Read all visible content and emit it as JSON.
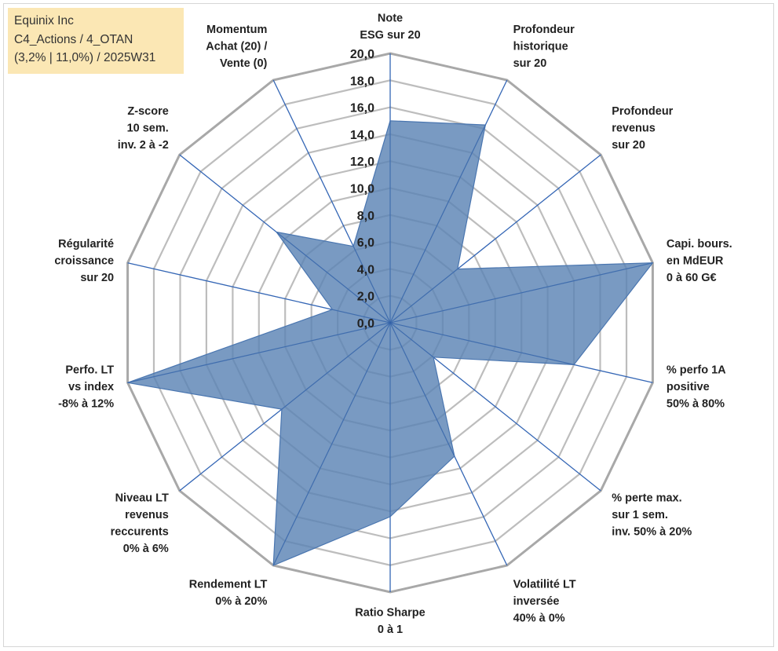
{
  "info": {
    "line1": "Equinix Inc",
    "line2": "C4_Actions / 4_OTAN",
    "line3": "(3,2% | 11,0%) / 2025W31"
  },
  "chart_data": {
    "type": "radar",
    "range": [
      0,
      20
    ],
    "step": 2,
    "grid": true,
    "tick_labels": [
      "0,0",
      "2,0",
      "4,0",
      "6,0",
      "8,0",
      "10,0",
      "12,0",
      "14,0",
      "16,0",
      "18,0",
      "20,0"
    ],
    "axes": [
      {
        "label": [
          "Note",
          "ESG sur 20"
        ],
        "value": 15.0
      },
      {
        "label": [
          "Profondeur",
          "historique",
          "sur 20"
        ],
        "value": 16.3
      },
      {
        "label": [
          "Profondeur",
          "revenus",
          "sur 20"
        ],
        "value": 6.4
      },
      {
        "label": [
          "Capi. bours.",
          "en MdEUR",
          "0 à 60 G€"
        ],
        "value": 20.0
      },
      {
        "label": [
          "% perfo 1A",
          "positive",
          "50% à 80%"
        ],
        "value": 14.0
      },
      {
        "label": [
          "% perte max.",
          "sur 1 sem.",
          "inv. 50% à 20%"
        ],
        "value": 4.1
      },
      {
        "label": [
          "Volatilité LT",
          "inversée",
          "40% à 0%"
        ],
        "value": 11.0
      },
      {
        "label": [
          "Ratio Sharpe",
          "0 à 1"
        ],
        "value": 14.4
      },
      {
        "label": [
          "Rendement LT",
          "0% à 20%"
        ],
        "value": 20.0
      },
      {
        "label": [
          "Niveau LT",
          "revenus",
          "reccurents",
          "0% à 6%"
        ],
        "value": 10.3
      },
      {
        "label": [
          "Perfo. LT",
          "vs index",
          "-8% à 12%"
        ],
        "value": 20.0
      },
      {
        "label": [
          "Régularité",
          "croissance",
          "sur 20"
        ],
        "value": 4.4
      },
      {
        "label": [
          "Z-score",
          "10 sem.",
          "inv. 2 à -2"
        ],
        "value": 10.8
      },
      {
        "label": [
          "Momentum",
          "Achat (20) /",
          "Vente (0)"
        ],
        "value": 6.3
      }
    ],
    "colors": {
      "fill": "#5b84b4",
      "stroke": "#4a76b0",
      "spoke": "#3466b5",
      "grid": "#bdbdbd",
      "grid_outer": "#a8a8a8"
    }
  }
}
